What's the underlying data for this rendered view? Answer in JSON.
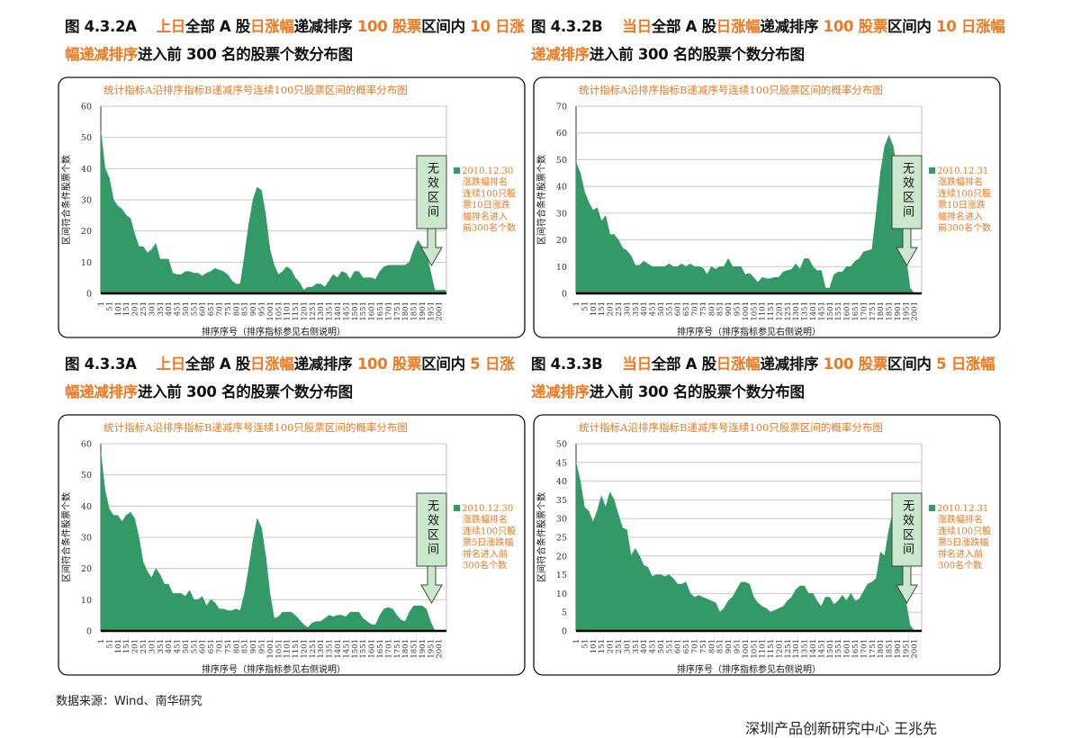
{
  "headings": [
    {
      "figure": "图 4.3.2A",
      "segments": [
        {
          "t": "上日",
          "hl": true
        },
        {
          "t": "全部 A 股",
          "hl": false
        },
        {
          "t": "日涨幅",
          "hl": true
        },
        {
          "t": "递减排序 ",
          "hl": false
        },
        {
          "t": "100 股票",
          "hl": true
        },
        {
          "t": "区间内 ",
          "hl": false
        },
        {
          "t": "10 日涨幅递减排序",
          "hl": true
        },
        {
          "t": "进入前 300 名的股票个数分布图",
          "hl": false
        }
      ]
    },
    {
      "figure": "图 4.3.2B",
      "segments": [
        {
          "t": "当日",
          "hl": true
        },
        {
          "t": "全部 A 股",
          "hl": false
        },
        {
          "t": "日涨幅",
          "hl": true
        },
        {
          "t": "递减排序 ",
          "hl": false
        },
        {
          "t": "100 股票",
          "hl": true
        },
        {
          "t": "区间内 ",
          "hl": false
        },
        {
          "t": "10 日涨幅递减排序",
          "hl": true
        },
        {
          "t": "进入前 300 名的股票个数分布图",
          "hl": false
        }
      ]
    },
    {
      "figure": "图 4.3.3A",
      "segments": [
        {
          "t": "上日",
          "hl": true
        },
        {
          "t": "全部 A 股",
          "hl": false
        },
        {
          "t": "日涨幅",
          "hl": true
        },
        {
          "t": "递减排序 ",
          "hl": false
        },
        {
          "t": "100 股票",
          "hl": true
        },
        {
          "t": "区间内 ",
          "hl": false
        },
        {
          "t": "5 日涨幅递减排序",
          "hl": true
        },
        {
          "t": "进入前 300 名的股票个数分布图",
          "hl": false
        }
      ]
    },
    {
      "figure": "图 4.3.3B",
      "segments": [
        {
          "t": "当日",
          "hl": true
        },
        {
          "t": "全部 A 股",
          "hl": false
        },
        {
          "t": "日涨幅",
          "hl": true
        },
        {
          "t": "递减排序 ",
          "hl": false
        },
        {
          "t": "100 股票",
          "hl": true
        },
        {
          "t": "区间内 ",
          "hl": false
        },
        {
          "t": "5 日涨幅递减排序",
          "hl": true
        },
        {
          "t": "进入前 300 名的股票个数分布图",
          "hl": false
        }
      ]
    }
  ],
  "colors": {
    "fill": "#339966",
    "accent": "#f07820",
    "callout_fill": "#cce8cc",
    "grid": "#c8c8c8"
  },
  "chart_data": [
    {
      "type": "area",
      "title": "统计指标A沿排序指标B递减序号连续100只股票区间的概率分布图",
      "xlabel": "排序序号（排序指标参见右侧说明）",
      "ylabel": "区间符合条件股票个数",
      "ylim": [
        0,
        60
      ],
      "yticks": [
        0,
        10,
        20,
        30,
        40,
        50,
        60
      ],
      "xlim": [
        1,
        2045
      ],
      "grid": true,
      "legend_position": "right",
      "callout": "无效区间",
      "series": [
        {
          "name": "2010.12.30涨跌幅排名连续100只股票10日涨跌幅排名进入前300名个数",
          "legend_lines": [
            "2010.12.30",
            "涨跌幅排名",
            "连续100只股",
            "票10日涨跌",
            "幅排名进入",
            "前300名个数"
          ],
          "x": [
            1,
            26,
            51,
            76,
            101,
            126,
            151,
            176,
            201,
            226,
            251,
            276,
            301,
            326,
            351,
            376,
            401,
            426,
            451,
            476,
            501,
            526,
            551,
            576,
            601,
            626,
            651,
            676,
            701,
            726,
            751,
            776,
            801,
            826,
            851,
            876,
            901,
            926,
            951,
            976,
            1001,
            1026,
            1051,
            1076,
            1101,
            1126,
            1151,
            1176,
            1201,
            1226,
            1251,
            1276,
            1301,
            1326,
            1351,
            1376,
            1401,
            1426,
            1451,
            1476,
            1501,
            1526,
            1551,
            1576,
            1601,
            1626,
            1651,
            1676,
            1701,
            1726,
            1751,
            1776,
            1801,
            1826,
            1851,
            1876,
            1901,
            1926,
            1951,
            1976,
            2001,
            2040
          ],
          "y": [
            52,
            40,
            37,
            30,
            28,
            27,
            25,
            24,
            19,
            15,
            15,
            13,
            14,
            16,
            11,
            11,
            11,
            6.5,
            6,
            6,
            7,
            7,
            6.5,
            6.5,
            5.5,
            6.5,
            7,
            8,
            7.5,
            7,
            6,
            4,
            3,
            3,
            12,
            22,
            30,
            34,
            33,
            25,
            14,
            9,
            6,
            7,
            8.5,
            7.5,
            5,
            3.5,
            1,
            2,
            2,
            3,
            3,
            2,
            4,
            6,
            5,
            7,
            6.5,
            4.5,
            7,
            7,
            5,
            5,
            5,
            4.5,
            7,
            8.5,
            9,
            9,
            9,
            9,
            9,
            10,
            14,
            17,
            15,
            13,
            7,
            1,
            1,
            1
          ]
        }
      ]
    },
    {
      "type": "area",
      "title": "统计指标A沿排序指标B递减序号连续100只股票区间的概率分布图",
      "xlabel": "排序序号（排序指标参见右侧说明）",
      "ylabel": "区间符合条件股票个数",
      "ylim": [
        0,
        70
      ],
      "yticks": [
        0,
        10,
        20,
        30,
        40,
        50,
        60,
        70
      ],
      "xlim": [
        1,
        2045
      ],
      "grid": true,
      "legend_position": "right",
      "callout": "无效区间",
      "series": [
        {
          "name": "2010.12.31涨跌幅排名连续100只股票10日涨跌幅排名进入前300名个数",
          "legend_lines": [
            "2010.12.31",
            "涨跌幅排名",
            "连续100只股",
            "票10日涨跌",
            "幅排名进入",
            "前300名个数"
          ],
          "x": [
            1,
            26,
            51,
            76,
            101,
            126,
            151,
            176,
            201,
            226,
            251,
            276,
            301,
            326,
            351,
            376,
            401,
            426,
            451,
            476,
            501,
            526,
            551,
            576,
            601,
            626,
            651,
            676,
            701,
            726,
            751,
            776,
            801,
            826,
            851,
            876,
            901,
            926,
            951,
            976,
            1001,
            1026,
            1051,
            1076,
            1101,
            1126,
            1151,
            1176,
            1201,
            1226,
            1251,
            1276,
            1301,
            1326,
            1351,
            1376,
            1401,
            1426,
            1451,
            1476,
            1501,
            1526,
            1551,
            1576,
            1601,
            1626,
            1651,
            1676,
            1701,
            1726,
            1751,
            1776,
            1801,
            1826,
            1851,
            1876,
            1901,
            1926,
            1951,
            1976,
            2001
          ],
          "y": [
            49,
            45,
            38,
            34,
            31,
            32,
            27,
            29,
            22,
            22,
            20,
            17,
            16,
            14,
            10.5,
            10.5,
            12,
            11,
            10,
            10,
            10,
            10,
            11,
            10,
            10,
            11,
            10,
            11,
            10,
            10,
            9.5,
            7,
            10,
            9,
            10,
            10,
            13,
            10,
            10,
            10,
            7,
            7.5,
            6,
            4,
            6,
            5.5,
            5.5,
            6,
            6,
            8,
            8.5,
            9,
            11,
            9,
            13,
            13,
            10,
            8.5,
            8.5,
            2,
            2,
            7,
            8,
            8,
            10,
            10,
            12,
            13,
            15.5,
            16,
            16.5,
            30,
            45,
            55,
            59,
            55,
            45,
            30,
            14,
            2,
            0
          ]
        }
      ]
    },
    {
      "type": "area",
      "title": "统计指标A沿排序指标B递减序号连续100只股票区间的概率分布图",
      "xlabel": "排序序号（排序指标参见右侧说明）",
      "ylabel": "区间符合条件股票个数",
      "ylim": [
        0,
        60
      ],
      "yticks": [
        0,
        10,
        20,
        30,
        40,
        50,
        60
      ],
      "xlim": [
        1,
        2045
      ],
      "grid": true,
      "legend_position": "right",
      "callout": "无效区间",
      "series": [
        {
          "name": "2010.12.30涨跌幅排名连续100只股票5日涨跌幅排名进入前300名个数",
          "legend_lines": [
            "2010.12.30",
            "涨跌幅排名",
            "连续100只股",
            "票5日涨跌幅",
            "排名进入前",
            "300名个数"
          ],
          "x": [
            1,
            26,
            51,
            76,
            101,
            126,
            151,
            176,
            201,
            226,
            251,
            276,
            301,
            326,
            351,
            376,
            401,
            426,
            451,
            476,
            501,
            526,
            551,
            576,
            601,
            626,
            651,
            676,
            701,
            726,
            751,
            776,
            801,
            826,
            851,
            876,
            901,
            926,
            951,
            976,
            1001,
            1026,
            1051,
            1076,
            1101,
            1126,
            1151,
            1176,
            1201,
            1226,
            1251,
            1276,
            1301,
            1326,
            1351,
            1376,
            1401,
            1426,
            1451,
            1476,
            1501,
            1526,
            1551,
            1576,
            1601,
            1626,
            1651,
            1676,
            1701,
            1726,
            1751,
            1776,
            1801,
            1826,
            1851,
            1876,
            1901,
            1926,
            1951,
            1976,
            2001
          ],
          "y": [
            57,
            45,
            39,
            37,
            37,
            35,
            37,
            38,
            36,
            30,
            22,
            19,
            17,
            20,
            18,
            15,
            15,
            12,
            12,
            12,
            11,
            13,
            10,
            10,
            11,
            8,
            10,
            9,
            7,
            7,
            6.5,
            6.5,
            7,
            6.5,
            12,
            20,
            29,
            36,
            33,
            24,
            12,
            4,
            4.5,
            6,
            6,
            6,
            5,
            3.5,
            2,
            1,
            2.5,
            3,
            3,
            4,
            5,
            4.5,
            5,
            5,
            4.5,
            6,
            6,
            6,
            4,
            3,
            2,
            2,
            5,
            7,
            7.5,
            7,
            5,
            3.5,
            3,
            6,
            8,
            8,
            8,
            7,
            3,
            0,
            0
          ]
        }
      ]
    },
    {
      "type": "area",
      "title": "统计指标A沿排序指标B递减序号连续100只股票区间的概率分布图",
      "xlabel": "排序序号（排序指标参见右侧说明）",
      "ylabel": "区间符合条件股票个数",
      "ylim": [
        0,
        50
      ],
      "yticks": [
        0,
        5,
        10,
        15,
        20,
        25,
        30,
        35,
        40,
        45,
        50
      ],
      "xlim": [
        1,
        2045
      ],
      "grid": true,
      "legend_position": "right",
      "callout": "无效区间",
      "series": [
        {
          "name": "2010.12.31涨跌幅排名连续100只股票5日涨跌幅排名进入前300名个数",
          "legend_lines": [
            "2010.12.31",
            "涨跌幅排名",
            "连续100只股",
            "票5日涨跌幅",
            "排名进入前",
            "300名个数"
          ],
          "x": [
            1,
            26,
            51,
            76,
            101,
            126,
            151,
            176,
            201,
            226,
            251,
            276,
            301,
            326,
            351,
            376,
            401,
            426,
            451,
            476,
            501,
            526,
            551,
            576,
            601,
            626,
            651,
            676,
            701,
            726,
            751,
            776,
            801,
            826,
            851,
            876,
            901,
            926,
            951,
            976,
            1001,
            1026,
            1051,
            1076,
            1101,
            1126,
            1151,
            1176,
            1201,
            1226,
            1251,
            1276,
            1301,
            1326,
            1351,
            1376,
            1401,
            1426,
            1451,
            1476,
            1501,
            1526,
            1551,
            1576,
            1601,
            1626,
            1651,
            1676,
            1701,
            1726,
            1751,
            1776,
            1801,
            1826,
            1851,
            1876,
            1901,
            1926,
            1951,
            1976,
            2001
          ],
          "y": [
            45,
            40,
            33,
            32,
            29,
            32,
            36,
            33,
            37,
            35,
            31,
            27.5,
            27,
            20,
            22,
            20,
            17.5,
            17,
            14.5,
            15,
            15,
            14.5,
            15,
            14,
            12.5,
            12.5,
            13,
            10,
            9,
            9.5,
            9,
            8.5,
            8,
            7.5,
            5,
            6,
            8,
            9,
            11,
            13,
            13,
            12.5,
            9,
            7.5,
            6.5,
            6,
            5,
            5.5,
            6,
            6.5,
            8,
            9,
            11,
            12,
            12,
            10,
            10,
            8,
            6.5,
            9,
            9,
            7,
            8,
            9.5,
            8,
            10,
            8,
            8.5,
            10.5,
            12.5,
            13,
            14,
            21,
            20,
            27,
            32,
            31,
            22,
            8,
            1.5,
            0
          ]
        }
      ]
    }
  ],
  "xticks": [
    "1",
    "51",
    "101",
    "151",
    "201",
    "251",
    "301",
    "351",
    "401",
    "451",
    "501",
    "551",
    "601",
    "651",
    "701",
    "751",
    "801",
    "851",
    "901",
    "951",
    "1001",
    "1051",
    "1101",
    "1151",
    "1201",
    "1251",
    "1301",
    "1351",
    "1401",
    "1451",
    "1501",
    "1551",
    "1601",
    "1651",
    "1701",
    "1751",
    "1801",
    "1851",
    "1901",
    "1951",
    "2001"
  ],
  "source": "数据来源：Wind、南华研究",
  "footer": "深圳产品创新研究中心 王兆先"
}
